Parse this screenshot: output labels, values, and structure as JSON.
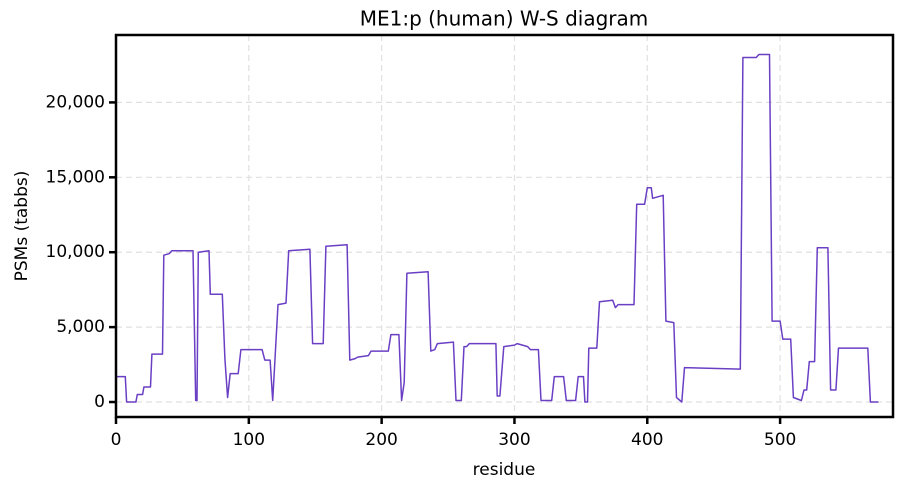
{
  "chart_data": {
    "type": "line",
    "title": "ME1:p (human) W-S diagram",
    "x_label": "residue",
    "y_label": "PSMs (tabbs)",
    "xlim": [
      0,
      585
    ],
    "ylim": [
      -1000,
      24500
    ],
    "xticks": [
      0,
      100,
      200,
      300,
      400,
      500
    ],
    "yticks": [
      0,
      {
        "value": 5000,
        "label": "5,000"
      },
      {
        "value": 10000,
        "label": "10,000"
      },
      {
        "value": 15000,
        "label": "15,000"
      },
      {
        "value": 20000,
        "label": "20,000"
      }
    ],
    "grid": true,
    "series": [
      {
        "color": "#6a3fc4",
        "x": [
          0,
          7,
          8,
          15,
          16,
          20,
          21,
          26,
          27,
          35,
          36,
          40,
          42,
          58,
          60,
          61,
          62,
          70,
          71,
          80,
          82,
          84,
          86,
          92,
          94,
          110,
          112,
          116,
          118,
          122,
          128,
          130,
          146,
          148,
          156,
          158,
          174,
          176,
          180,
          182,
          190,
          192,
          205,
          207,
          213,
          215,
          217,
          219,
          235,
          237,
          240,
          242,
          254,
          256,
          260,
          262,
          264,
          266,
          286,
          287,
          289,
          292,
          300,
          302,
          310,
          312,
          318,
          320,
          328,
          330,
          337,
          339,
          346,
          348,
          352,
          353,
          355,
          356,
          362,
          364,
          374,
          376,
          378,
          390,
          392,
          398,
          400,
          403,
          404,
          412,
          414,
          420,
          422,
          426,
          428,
          470,
          472,
          482,
          484,
          492,
          494,
          500,
          502,
          508,
          510,
          516,
          518,
          520,
          522,
          526,
          528,
          536,
          538,
          542,
          544,
          566,
          568,
          574
        ],
        "values": [
          1700,
          1700,
          0,
          0,
          500,
          500,
          1000,
          1000,
          3200,
          3200,
          9800,
          9900,
          10100,
          10100,
          100,
          100,
          10000,
          10100,
          7200,
          7200,
          2900,
          300,
          1900,
          1900,
          3500,
          3500,
          2800,
          2800,
          100,
          6500,
          6600,
          10100,
          10200,
          3900,
          3900,
          10400,
          10500,
          2800,
          2900,
          3000,
          3100,
          3400,
          3400,
          4500,
          4500,
          100,
          1300,
          8600,
          8700,
          3400,
          3500,
          3900,
          4000,
          100,
          100,
          3700,
          3700,
          3900,
          3900,
          400,
          400,
          3700,
          3800,
          3900,
          3700,
          3500,
          3500,
          100,
          100,
          1700,
          1700,
          100,
          100,
          1700,
          1700,
          0,
          0,
          3600,
          3600,
          6700,
          6800,
          6300,
          6500,
          6500,
          13200,
          13200,
          14300,
          14300,
          13600,
          13800,
          5400,
          5300,
          300,
          0,
          2300,
          2200,
          23000,
          23000,
          23200,
          23200,
          5400,
          5400,
          4200,
          4200,
          300,
          100,
          800,
          800,
          2700,
          2700,
          10300,
          10300,
          800,
          800,
          3600,
          3600,
          0,
          0
        ]
      }
    ]
  }
}
